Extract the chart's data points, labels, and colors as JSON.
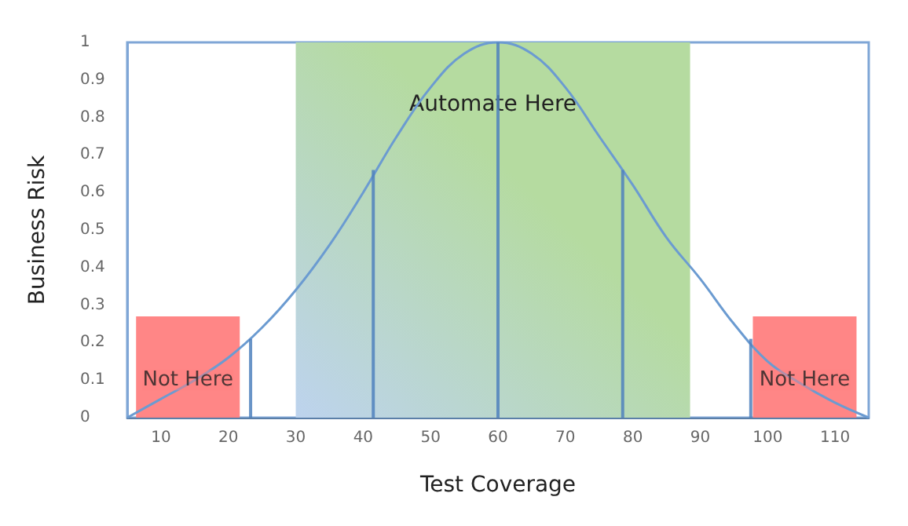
{
  "chart_data": {
    "type": "line",
    "xlabel": "Test Coverage",
    "ylabel": "Business Risk",
    "xlim": [
      5,
      115
    ],
    "xticks": [
      10,
      20,
      30,
      40,
      50,
      60,
      70,
      80,
      90,
      100,
      110
    ],
    "ylim": [
      0,
      1
    ],
    "yticks": [
      0,
      0.1,
      0.2,
      0.3,
      0.4,
      0.5,
      0.6,
      0.7,
      0.8,
      0.9,
      1
    ],
    "series": [
      {
        "type": "bar",
        "color": "#ff7f7f",
        "x": [
          14,
          105.5
        ],
        "values": [
          0.27,
          0.27
        ]
      },
      {
        "color": "#6b9bd1",
        "x": [
          5,
          10,
          15,
          20,
          25,
          30,
          35,
          40,
          45,
          50,
          55,
          60,
          65,
          70,
          75,
          80,
          85,
          90,
          95,
          100,
          105,
          110,
          115
        ],
        "values": [
          0,
          0.05,
          0.1,
          0.16,
          0.24,
          0.34,
          0.46,
          0.6,
          0.75,
          0.88,
          0.97,
          1.0,
          0.97,
          0.88,
          0.75,
          0.62,
          0.48,
          0.37,
          0.25,
          0.15,
          0.09,
          0.04,
          0
        ]
      },
      {
        "type": "bar",
        "color": "#4f81bd",
        "x": [
          23.3,
          41.5,
          60,
          78.5,
          97.5
        ],
        "values": [
          0.21,
          0.66,
          1.0,
          0.66,
          0.21
        ]
      }
    ],
    "bands": [
      {
        "axis": "x",
        "from": 30,
        "to": 88.5,
        "label": "Automate Here",
        "color": "#b5dba0"
      }
    ],
    "annotations": [
      {
        "text": "Not Here",
        "x": 14,
        "y": 0.1
      },
      {
        "text": "Not Here",
        "x": 105.5,
        "y": 0.1
      }
    ],
    "grid": false,
    "marker": "none",
    "line_style": "solid"
  }
}
